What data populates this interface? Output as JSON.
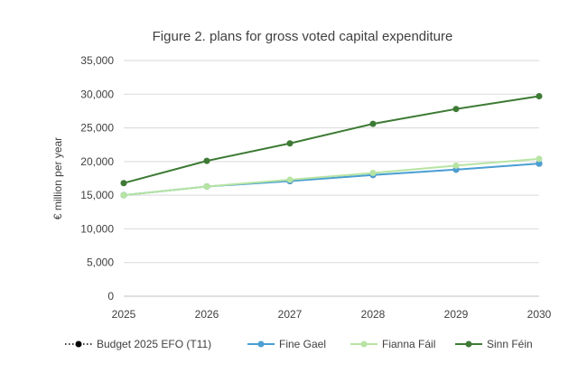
{
  "chart_data": {
    "type": "line",
    "title": "Figure 2. plans for gross voted capital expenditure",
    "xlabel": "",
    "ylabel": "€ million per year",
    "x": [
      2025,
      2026,
      2027,
      2028,
      2029,
      2030
    ],
    "x_tick_labels": [
      "2025",
      "2026",
      "2027",
      "2028",
      "2029",
      "2030"
    ],
    "ylim": [
      0,
      35000
    ],
    "y_ticks": [
      0,
      5000,
      10000,
      15000,
      20000,
      25000,
      30000,
      35000
    ],
    "y_tick_labels": [
      "0",
      "5,000",
      "10,000",
      "15,000",
      "20,000",
      "25,000",
      "30,000",
      "35,000"
    ],
    "grid": "horizontal",
    "legend_position": "bottom",
    "series": [
      {
        "name": "Budget 2025 EFO (T11)",
        "color": "#000000",
        "style": "dotted",
        "values": [
          15000,
          16300,
          17100,
          18000,
          18800,
          19700
        ]
      },
      {
        "name": "Fine Gael",
        "color": "#4a9fd4",
        "style": "solid",
        "values": [
          15000,
          16300,
          17100,
          18000,
          18800,
          19700
        ]
      },
      {
        "name": "Fianna Fáil",
        "color": "#b7e4a3",
        "style": "solid",
        "values": [
          15000,
          16300,
          17300,
          18300,
          19400,
          20400
        ]
      },
      {
        "name": "Sinn Féin",
        "color": "#3d7a34",
        "style": "solid",
        "values": [
          16800,
          20100,
          22700,
          25600,
          27800,
          29700
        ]
      }
    ]
  }
}
